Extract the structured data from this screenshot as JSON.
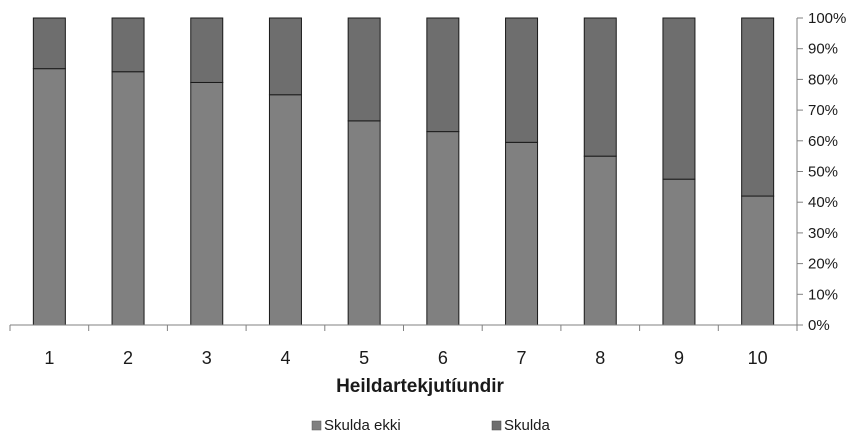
{
  "chart_data": {
    "type": "bar",
    "stacked": true,
    "categories": [
      "1",
      "2",
      "3",
      "4",
      "5",
      "6",
      "7",
      "8",
      "9",
      "10"
    ],
    "series": [
      {
        "name": "Skulda ekki",
        "color": "#808080",
        "values": [
          83.5,
          82.5,
          79,
          75,
          66.5,
          63,
          59.5,
          55,
          47.5,
          42
        ]
      },
      {
        "name": "Skulda",
        "color": "#6e6e6e",
        "values": [
          16.5,
          17.5,
          21,
          25,
          33.5,
          37,
          40.5,
          45,
          52.5,
          58
        ]
      }
    ],
    "ylim": [
      0,
      100
    ],
    "yticks": [
      "0%",
      "10%",
      "20%",
      "30%",
      "40%",
      "50%",
      "60%",
      "70%",
      "80%",
      "90%",
      "100%"
    ],
    "xlabel": "Heildartekjutíundir",
    "ylabel": "",
    "grid": false,
    "legend": "bottom"
  }
}
